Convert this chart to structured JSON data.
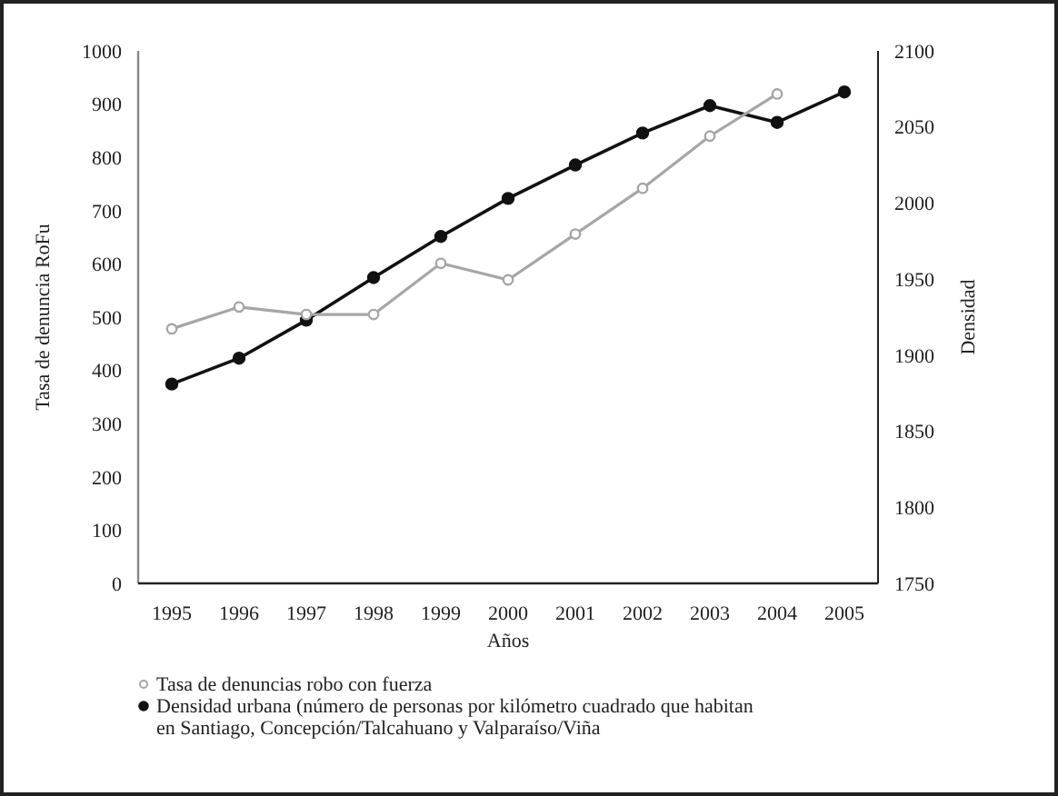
{
  "chart_data": {
    "type": "line",
    "xlabel": "Años",
    "ylabel": "Tasa de denuncia RoFu",
    "y2label": "Densidad",
    "categories": [
      "1995",
      "1996",
      "1997",
      "1998",
      "1999",
      "2000",
      "2001",
      "2002",
      "2003",
      "2004",
      "2005"
    ],
    "series": [
      {
        "name": "Tasa de denuncias robo con fuerza",
        "color": "#a6a6a6",
        "axis": "y",
        "values": [
          478,
          519,
          505,
          505,
          601,
          570,
          656,
          742,
          840,
          919,
          null
        ]
      },
      {
        "name": "Densidad urbana (número de personas por kilómetro cuadrado que habitan en Santiago, Concepción/Talcahuano y Valparaíso/Viña",
        "color": "#111111",
        "axis": "y2",
        "values": [
          1881,
          1898,
          1923,
          1951,
          1978,
          2003,
          2025,
          2046,
          2064,
          2053,
          2073
        ]
      }
    ],
    "ylim": [
      0,
      1000
    ],
    "yticks": [
      0,
      100,
      200,
      300,
      400,
      500,
      600,
      700,
      800,
      900,
      1000
    ],
    "y2lim": [
      1750,
      2100
    ],
    "y2ticks": [
      1750,
      1800,
      1850,
      1900,
      1950,
      2000,
      2050,
      2100
    ],
    "marker": "circle",
    "line_style": "solid",
    "legend": "bottom",
    "grid": false
  }
}
